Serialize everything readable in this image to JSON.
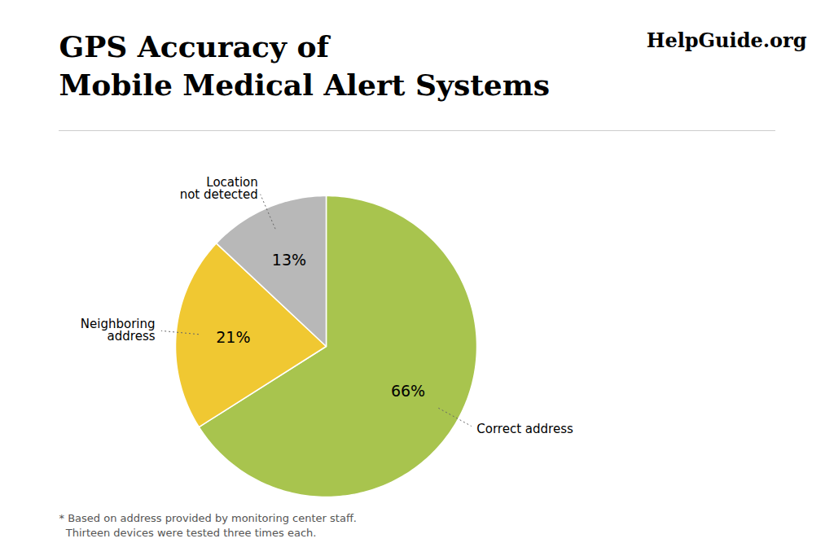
{
  "chart_data": {
    "type": "pie",
    "title": "GPS Accuracy of\nMobile Medical Alert Systems",
    "categories": [
      "Correct address",
      "Neighboring\naddress",
      "Location\nnot detected"
    ],
    "values": [
      66,
      21,
      13
    ],
    "value_labels": [
      "66%",
      "21%",
      "13%"
    ],
    "data_labels": true,
    "colors": [
      "#a8c44e",
      "#f0c832",
      "#b8b8b8"
    ],
    "annotations": [
      "HelpGuide.org",
      "* Based on address provided by monitoring center staff.",
      "  Thirteen devices were tested three times each."
    ]
  }
}
